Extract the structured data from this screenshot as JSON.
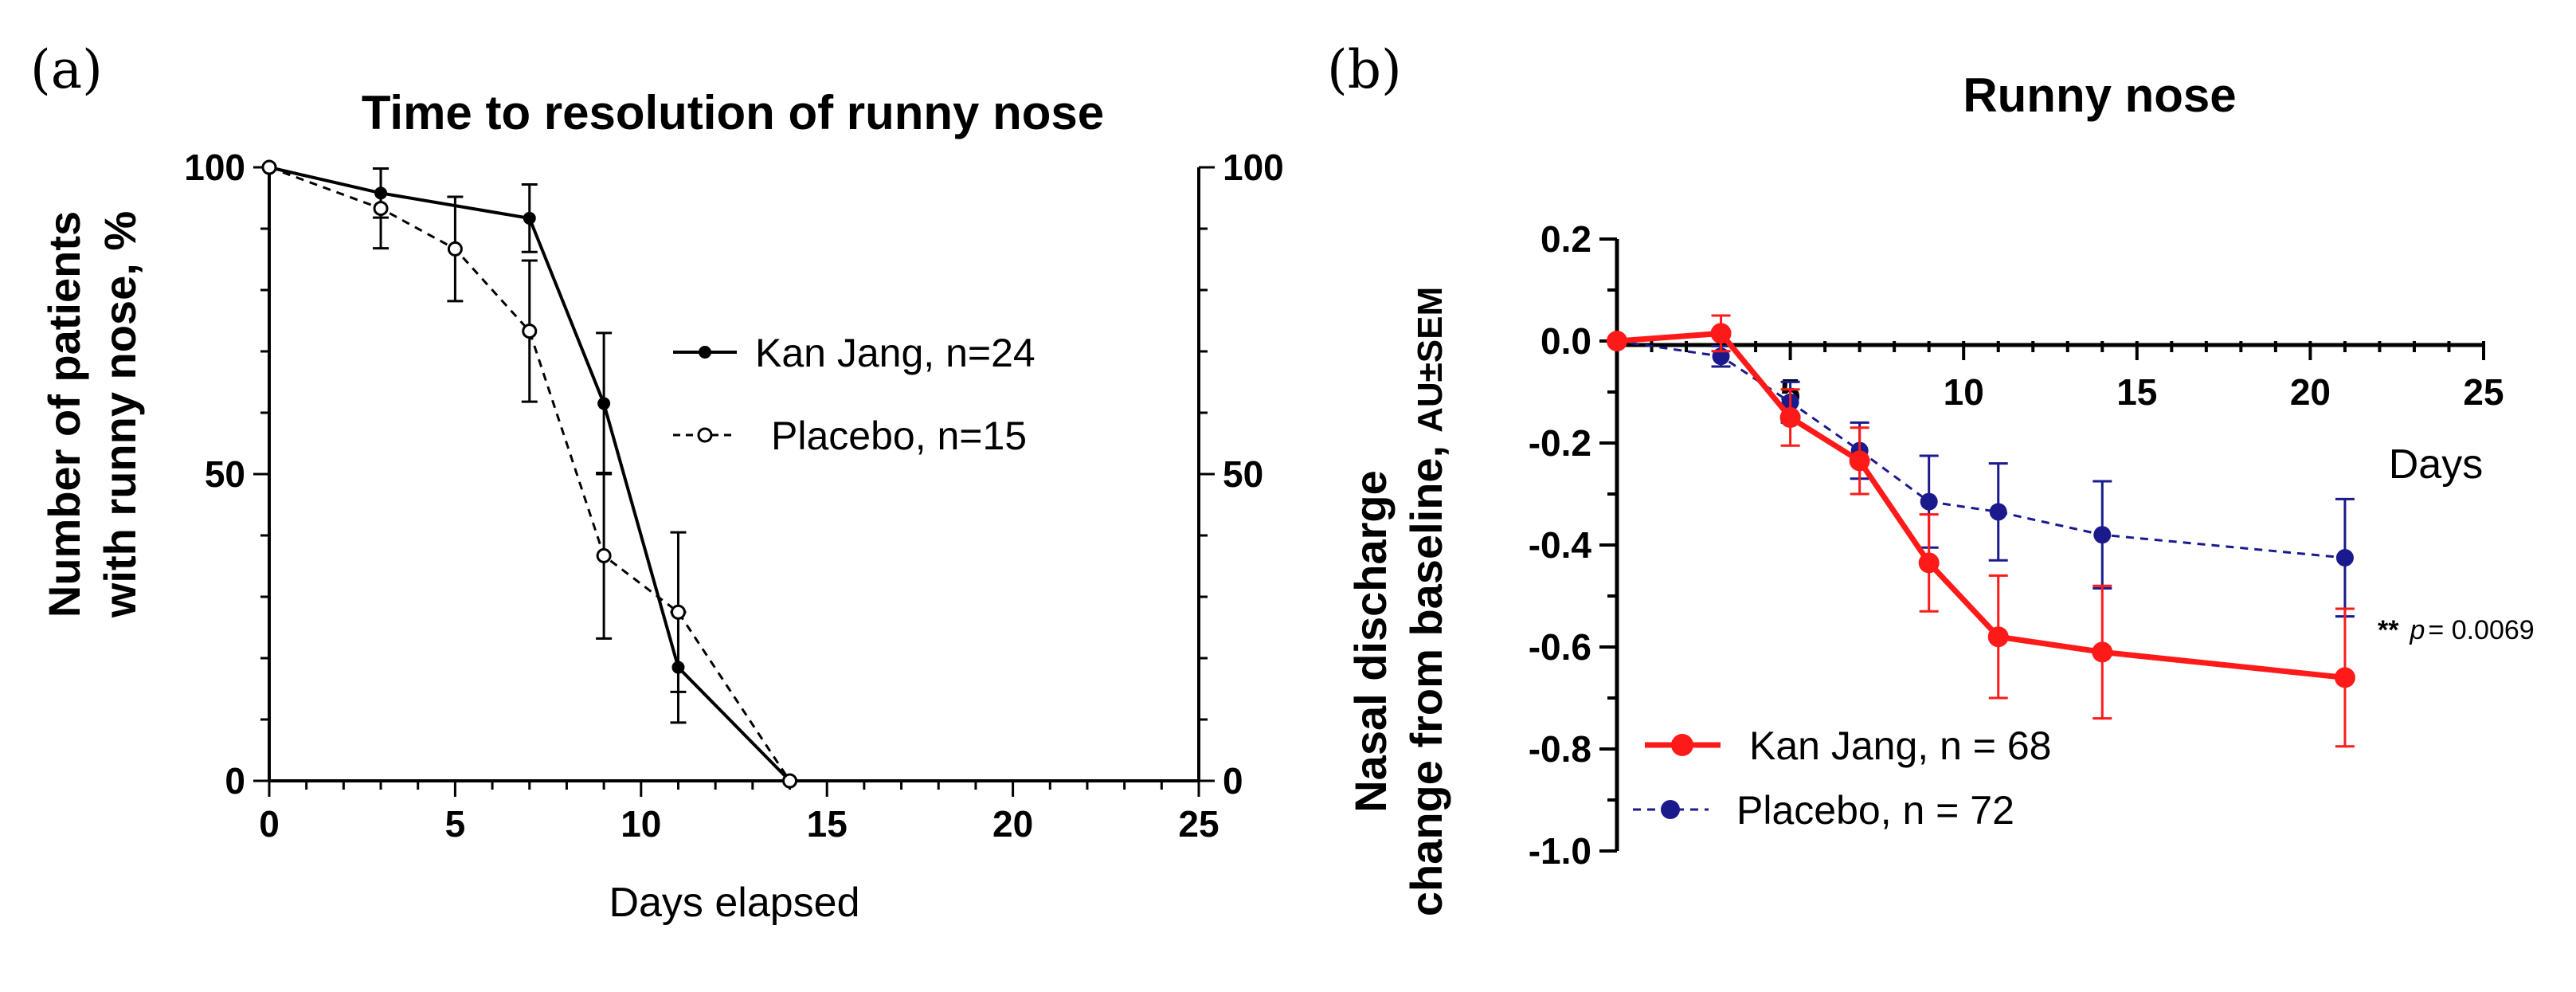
{
  "chart_data": [
    {
      "panel_label": "(a)",
      "type": "line",
      "title": "Time to resolution of runny nose",
      "xlabel": "Days elapsed",
      "ylabel_line1": "Number of patients",
      "ylabel_line2": "with runny nose, %",
      "xlim": [
        0,
        25
      ],
      "ylim": [
        0,
        100
      ],
      "x_ticks": [
        "0",
        "5",
        "10",
        "15",
        "20",
        "25"
      ],
      "y_ticks": [
        "0",
        "50",
        "100"
      ],
      "y2_ticks": [
        "0",
        "50",
        "100"
      ],
      "legend_position": "center-right",
      "series": [
        {
          "name": "Kan Jang, n=24",
          "color": "#000000",
          "style": "solid",
          "marker": "filled-circle",
          "points": [
            {
              "x": 0,
              "y": 100,
              "err": 0
            },
            {
              "x": 3,
              "y": 95.8,
              "err": 4
            },
            {
              "x": 7,
              "y": 91.7,
              "err": 5.5
            },
            {
              "x": 9,
              "y": 61.5,
              "err": 11.5
            },
            {
              "x": 11,
              "y": 18.5,
              "err": 9
            },
            {
              "x": 14,
              "y": 0,
              "err": 0
            }
          ]
        },
        {
          "name": "Placebo, n=15",
          "color": "#000000",
          "style": "dashed",
          "marker": "open-circle",
          "points": [
            {
              "x": 0,
              "y": 100,
              "err": 0
            },
            {
              "x": 3,
              "y": 93.3,
              "err": 6.5
            },
            {
              "x": 5,
              "y": 86.7,
              "err": 8.5
            },
            {
              "x": 7,
              "y": 73.3,
              "err": 11.5
            },
            {
              "x": 9,
              "y": 36.7,
              "err": 13.5
            },
            {
              "x": 11,
              "y": 27.5,
              "err": 13
            },
            {
              "x": 14,
              "y": 0,
              "err": 0
            }
          ]
        }
      ]
    },
    {
      "panel_label": "(b)",
      "type": "line",
      "title": "Runny nose",
      "xlabel": "Days",
      "ylabel_line1": "Nasal discharge",
      "ylabel_line2": "change from baseline,",
      "ylabel_line2_suffix": "AU±SEM",
      "xlim": [
        0,
        25
      ],
      "ylim": [
        -1.0,
        0.2
      ],
      "x_ticks": [
        "5",
        "10",
        "15",
        "20",
        "25"
      ],
      "y_ticks": [
        "0.2",
        "0.0",
        "-0.2",
        "-0.4",
        "-0.6",
        "-0.8",
        "-1.0"
      ],
      "legend_position": "bottom-left",
      "annotation": {
        "stars": "**",
        "p": "p",
        "rest": " = 0.0069"
      },
      "series": [
        {
          "name": "Kan Jang, n = 68",
          "color": "#ff1a1a",
          "style": "solid",
          "marker": "filled-circle",
          "points": [
            {
              "x": 0,
              "y": 0.0,
              "err": 0
            },
            {
              "x": 3,
              "y": 0.015,
              "err": 0.035
            },
            {
              "x": 5,
              "y": -0.15,
              "err": 0.055
            },
            {
              "x": 7,
              "y": -0.235,
              "err": 0.065
            },
            {
              "x": 9,
              "y": -0.435,
              "err": 0.095
            },
            {
              "x": 11,
              "y": -0.58,
              "err": 0.12
            },
            {
              "x": 14,
              "y": -0.61,
              "err": 0.13
            },
            {
              "x": 21,
              "y": -0.66,
              "err": 0.135
            }
          ]
        },
        {
          "name": "Placebo, n = 72",
          "color": "#1a1a8c",
          "style": "dashed",
          "marker": "filled-circle",
          "points": [
            {
              "x": 0,
              "y": 0.0,
              "err": 0
            },
            {
              "x": 3,
              "y": -0.03,
              "err": 0.02
            },
            {
              "x": 5,
              "y": -0.12,
              "err": 0.04
            },
            {
              "x": 7,
              "y": -0.215,
              "err": 0.055
            },
            {
              "x": 9,
              "y": -0.315,
              "err": 0.09
            },
            {
              "x": 11,
              "y": -0.335,
              "err": 0.095
            },
            {
              "x": 14,
              "y": -0.38,
              "err": 0.105
            },
            {
              "x": 21,
              "y": -0.425,
              "err": 0.115
            }
          ]
        }
      ]
    }
  ]
}
